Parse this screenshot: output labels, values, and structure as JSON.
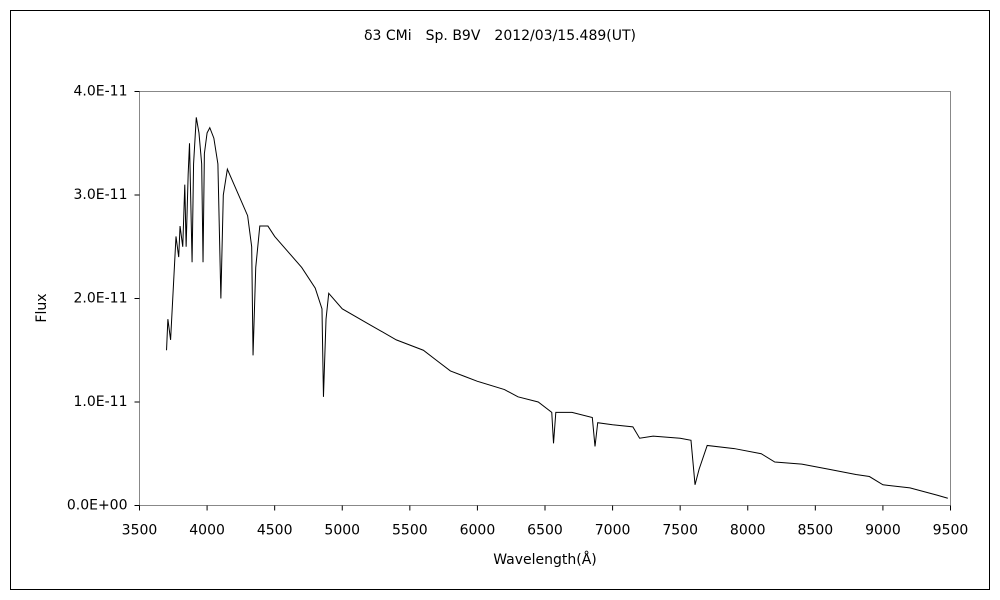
{
  "chart_data": {
    "type": "line",
    "title": "δ3 CMi　Sp. B9V　2012/03/15.489(UT)",
    "x_label": "Wavelength(Å)",
    "y_label": "Flux",
    "color": "#000000",
    "grid": false,
    "xlim": [
      3500,
      9500
    ],
    "xticks": [
      3500,
      4000,
      4500,
      5000,
      5500,
      6000,
      6500,
      7000,
      7500,
      8000,
      8500,
      9000,
      9500
    ],
    "ylim": [
      0,
      4e-11
    ],
    "yticks": [
      {
        "value": 0,
        "label": "0.0E+00"
      },
      {
        "value": 1e-11,
        "label": "1.0E-11"
      },
      {
        "value": 2e-11,
        "label": "2.0E-11"
      },
      {
        "value": 3e-11,
        "label": "3.0E-11"
      },
      {
        "value": 4e-11,
        "label": "4.0E-11"
      }
    ],
    "x": [
      3700,
      3710,
      3730,
      3750,
      3770,
      3790,
      3800,
      3820,
      3835,
      3845,
      3860,
      3870,
      3880,
      3889,
      3900,
      3920,
      3940,
      3960,
      3970,
      3980,
      4000,
      4020,
      4050,
      4080,
      4102,
      4120,
      4150,
      4200,
      4250,
      4300,
      4330,
      4340,
      4360,
      4390,
      4450,
      4500,
      4600,
      4700,
      4800,
      4850,
      4861,
      4880,
      4900,
      5000,
      5200,
      5400,
      5600,
      5700,
      5800,
      5900,
      6000,
      6200,
      6300,
      6450,
      6550,
      6563,
      6580,
      6700,
      6850,
      6870,
      6890,
      7000,
      7150,
      7200,
      7300,
      7500,
      7580,
      7610,
      7640,
      7700,
      7900,
      8100,
      8200,
      8400,
      8600,
      8800,
      8900,
      9000,
      9200,
      9400,
      9480
    ],
    "values": [
      1.5e-11,
      1.8e-11,
      1.6e-11,
      2.1e-11,
      2.6e-11,
      2.4e-11,
      2.7e-11,
      2.5e-11,
      3.1e-11,
      2.5e-11,
      3.2e-11,
      3.5e-11,
      2.9e-11,
      2.35e-11,
      3.3e-11,
      3.75e-11,
      3.6e-11,
      3.3e-11,
      2.35e-11,
      3.4e-11,
      3.6e-11,
      3.65e-11,
      3.55e-11,
      3.3e-11,
      2e-11,
      3e-11,
      3.25e-11,
      3.1e-11,
      2.95e-11,
      2.8e-11,
      2.5e-11,
      1.45e-11,
      2.3e-11,
      2.7e-11,
      2.7e-11,
      2.6e-11,
      2.45e-11,
      2.3e-11,
      2.1e-11,
      1.9e-11,
      1.05e-11,
      1.8e-11,
      2.05e-11,
      1.9e-11,
      1.75e-11,
      1.6e-11,
      1.5e-11,
      1.4e-11,
      1.3e-11,
      1.25e-11,
      1.2e-11,
      1.12e-11,
      1.05e-11,
      1e-11,
      9e-12,
      6e-12,
      9e-12,
      9e-12,
      8.5e-12,
      5.7e-12,
      8e-12,
      7.8e-12,
      7.6e-12,
      6.5e-12,
      6.7e-12,
      6.5e-12,
      6.3e-12,
      2e-12,
      3.5e-12,
      5.8e-12,
      5.5e-12,
      5e-12,
      4.2e-12,
      4e-12,
      3.5e-12,
      3e-12,
      2.8e-12,
      2e-12,
      1.7e-12,
      1e-12,
      7e-13
    ]
  }
}
